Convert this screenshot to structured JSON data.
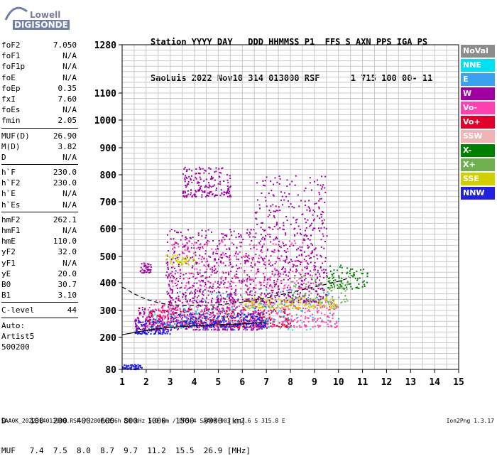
{
  "logo": {
    "top": "Lowell",
    "bottom": "DIGISONDE"
  },
  "header": {
    "line1": "Station YYYY DAY   DDD HHMMSS P1  FFS S AXN PPS IGA PS",
    "line2": "SaoLuis 2022 Nov10 314 013000 RSF      1 715 100 00- 11"
  },
  "params": {
    "group1": [
      {
        "k": "foF2",
        "v": "7.050"
      },
      {
        "k": "foF1",
        "v": "N/A"
      },
      {
        "k": "foF1p",
        "v": "N/A"
      },
      {
        "k": "foE",
        "v": "N/A"
      },
      {
        "k": "foEp",
        "v": "0.35"
      },
      {
        "k": "fxI",
        "v": "7.60"
      },
      {
        "k": "foEs",
        "v": "N/A"
      },
      {
        "k": "fmin",
        "v": "2.05"
      }
    ],
    "group2": [
      {
        "k": "MUF(D)",
        "v": "26.90"
      },
      {
        "k": "M(D)",
        "v": "3.82"
      },
      {
        "k": "D",
        "v": "N/A"
      }
    ],
    "group3": [
      {
        "k": "h`F",
        "v": "230.0"
      },
      {
        "k": "h`F2",
        "v": "230.0"
      },
      {
        "k": "h`E",
        "v": "N/A"
      },
      {
        "k": "h`Es",
        "v": "N/A"
      }
    ],
    "group4": [
      {
        "k": "hmF2",
        "v": "262.1"
      },
      {
        "k": "hmF1",
        "v": "N/A"
      },
      {
        "k": "hmE",
        "v": "110.0"
      },
      {
        "k": "yF2",
        "v": "32.0"
      },
      {
        "k": "yF1",
        "v": "N/A"
      },
      {
        "k": "yE",
        "v": "20.0"
      },
      {
        "k": "B0",
        "v": "30.7"
      },
      {
        "k": "B1",
        "v": "3.10"
      }
    ],
    "group5": [
      {
        "k": "C-level",
        "v": "44"
      }
    ],
    "auto": [
      "Auto:",
      "Artist5",
      "500200"
    ]
  },
  "legend": [
    {
      "label": "NoVal",
      "color": "#8c8c8c"
    },
    {
      "label": "NNE",
      "color": "#00e0f0"
    },
    {
      "label": "E",
      "color": "#3aa0f0"
    },
    {
      "label": "W",
      "color": "#a000a0"
    },
    {
      "label": "Vo-",
      "color": "#ff40b0"
    },
    {
      "label": "Vo+",
      "color": "#e0002a"
    },
    {
      "label": "SSW",
      "color": "#f0b4b4"
    },
    {
      "label": "X-",
      "color": "#008000"
    },
    {
      "label": "X+",
      "color": "#70b050"
    },
    {
      "label": "SSE",
      "color": "#d0d000"
    },
    {
      "label": "NNW",
      "color": "#2020e0"
    }
  ],
  "muf_table": {
    "line1": "D     100  200  400  600  800  1000  1500  3000 [km]",
    "line2": "MUF   7.4  7.5  8.0  8.7  9.7  11.2  15.5  26.9 [MHz]"
  },
  "footer": {
    "left": "SAA0K_2022314013000.RSF / 280fx256h 50 kHz 5.0 km / DPS-4 SAA0K 903 / 2.6 S 315.8 E",
    "right": "Ion2Png 1.3.17"
  },
  "chart_data": {
    "type": "scatter",
    "x_ticks": [
      1,
      2,
      3,
      4,
      5,
      6,
      7,
      8,
      9,
      10,
      11,
      12,
      13,
      14,
      15
    ],
    "y_ticks": [
      80,
      200,
      300,
      400,
      500,
      600,
      700,
      800,
      900,
      1000,
      1100,
      1280
    ],
    "xlim": [
      1,
      15
    ],
    "ylim": [
      80,
      1280
    ],
    "y_scale": "nonuniform",
    "grid": true,
    "legend_position": "right",
    "trace_curve": [
      [
        1.0,
        210
      ],
      [
        1.5,
        218
      ],
      [
        2.0,
        226
      ],
      [
        2.5,
        232
      ],
      [
        3.0,
        237
      ],
      [
        4.0,
        243
      ],
      [
        5.0,
        247
      ],
      [
        6.0,
        250
      ],
      [
        6.5,
        253
      ],
      [
        7.0,
        258
      ]
    ],
    "dashed_curve": [
      [
        1.0,
        385
      ],
      [
        1.5,
        360
      ],
      [
        2.0,
        340
      ],
      [
        2.5,
        328
      ],
      [
        3.0,
        320
      ],
      [
        4.0,
        318
      ],
      [
        5.0,
        320
      ],
      [
        6.0,
        330
      ],
      [
        7.0,
        345
      ],
      [
        8.0,
        365
      ],
      [
        9.0,
        385
      ],
      [
        10.0,
        405
      ],
      [
        10.5,
        420
      ]
    ],
    "scatter_regions": [
      {
        "color": "#2020e0",
        "xmin": 1.0,
        "xmax": 1.8,
        "ymin": 82,
        "ymax": 100,
        "count": 60
      },
      {
        "color": "#2020e0",
        "xmin": 1.5,
        "xmax": 3.0,
        "ymin": 215,
        "ymax": 265,
        "count": 150
      },
      {
        "color": "#a000a0",
        "xmin": 1.5,
        "xmax": 7.0,
        "ymin": 230,
        "ymax": 320,
        "count": 500
      },
      {
        "color": "#ff40b0",
        "xmin": 2.0,
        "xmax": 10.0,
        "ymin": 240,
        "ymax": 340,
        "count": 500
      },
      {
        "color": "#e0002a",
        "xmin": 2.0,
        "xmax": 8.0,
        "ymin": 240,
        "ymax": 310,
        "count": 200
      },
      {
        "color": "#d0d000",
        "xmin": 6.0,
        "xmax": 10.0,
        "ymin": 310,
        "ymax": 350,
        "count": 180
      },
      {
        "color": "#3aa0f0",
        "xmin": 3.0,
        "xmax": 10.0,
        "ymin": 260,
        "ymax": 380,
        "count": 150
      },
      {
        "color": "#a000a0",
        "xmin": 2.8,
        "xmax": 9.5,
        "ymin": 330,
        "ymax": 600,
        "count": 900
      },
      {
        "color": "#a000a0",
        "xmin": 3.5,
        "xmax": 5.5,
        "ymin": 720,
        "ymax": 830,
        "count": 180
      },
      {
        "color": "#a000a0",
        "xmin": 6.5,
        "xmax": 9.5,
        "ymin": 600,
        "ymax": 800,
        "count": 160
      },
      {
        "color": "#ff40b0",
        "xmin": 3.0,
        "xmax": 9.0,
        "ymin": 380,
        "ymax": 560,
        "count": 220
      },
      {
        "color": "#008000",
        "xmin": 9.5,
        "xmax": 11.2,
        "ymin": 380,
        "ymax": 470,
        "count": 90
      },
      {
        "color": "#70b050",
        "xmin": 8.0,
        "xmax": 10.5,
        "ymin": 330,
        "ymax": 430,
        "count": 80
      },
      {
        "color": "#00e0f0",
        "xmin": 2.0,
        "xmax": 9.0,
        "ymin": 230,
        "ymax": 330,
        "count": 80
      },
      {
        "color": "#2020e0",
        "xmin": 3.0,
        "xmax": 7.0,
        "ymin": 240,
        "ymax": 290,
        "count": 200
      },
      {
        "color": "#a000a0",
        "xmin": 1.7,
        "xmax": 2.2,
        "ymin": 440,
        "ymax": 480,
        "count": 40
      },
      {
        "color": "#d0d000",
        "xmin": 2.8,
        "xmax": 4.0,
        "ymin": 470,
        "ymax": 510,
        "count": 50
      }
    ]
  }
}
